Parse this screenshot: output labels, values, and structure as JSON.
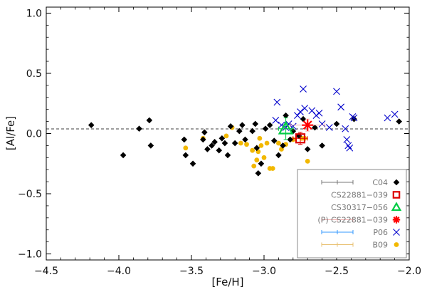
{
  "chart_data": {
    "type": "scatter",
    "xlabel": "[Fe/H]",
    "ylabel": "[Al/Fe]",
    "xlim": [
      -4.5,
      -2.0
    ],
    "ylim": [
      -1.05,
      1.05
    ],
    "xticks": [
      -4.5,
      -4.0,
      -3.5,
      -3.0,
      -2.5,
      -2.0
    ],
    "xtick_labels": [
      "−4.5",
      "−4.0",
      "−3.5",
      "−3.0",
      "−2.5",
      "−2.0"
    ],
    "yticks": [
      -1.0,
      -0.5,
      0.0,
      0.5,
      1.0
    ],
    "ytick_labels": [
      "−1.0",
      "−0.5",
      "0.0",
      "0.5",
      "1.0"
    ],
    "legend_position": "bottom-right",
    "series": [
      {
        "name": "C04",
        "marker": "diamond",
        "color": "#000000",
        "errorbar_color": "#777777",
        "points": [
          [
            -4.19,
            0.07
          ],
          [
            -3.97,
            -0.18
          ],
          [
            -3.86,
            0.04
          ],
          [
            -3.79,
            0.11
          ],
          [
            -3.78,
            -0.1
          ],
          [
            -3.55,
            -0.05
          ],
          [
            -3.54,
            -0.18
          ],
          [
            -3.49,
            -0.25
          ],
          [
            -3.42,
            -0.05
          ],
          [
            -3.41,
            0.01
          ],
          [
            -3.39,
            -0.13
          ],
          [
            -3.36,
            -0.1
          ],
          [
            -3.34,
            -0.07
          ],
          [
            -3.31,
            -0.14
          ],
          [
            -3.29,
            -0.04
          ],
          [
            -3.27,
            -0.08
          ],
          [
            -3.25,
            -0.18
          ],
          [
            -3.23,
            0.06
          ],
          [
            -3.2,
            -0.08
          ],
          [
            -3.17,
            0.02
          ],
          [
            -3.15,
            0.07
          ],
          [
            -3.13,
            -0.05
          ],
          [
            -3.08,
            0.02
          ],
          [
            -3.06,
            0.08
          ],
          [
            -3.05,
            -0.12
          ],
          [
            -3.04,
            -0.33
          ],
          [
            -3.02,
            -0.25
          ],
          [
            -2.99,
            0.04
          ],
          [
            -2.96,
            0.07
          ],
          [
            -2.93,
            -0.06
          ],
          [
            -2.9,
            -0.18
          ],
          [
            -2.87,
            -0.1
          ],
          [
            -2.85,
            0.15
          ],
          [
            -2.82,
            -0.05
          ],
          [
            -2.8,
            0.02
          ],
          [
            -2.76,
            -0.02
          ],
          [
            -2.73,
            0.12
          ],
          [
            -2.7,
            -0.13
          ],
          [
            -2.65,
            0.05
          ],
          [
            -2.6,
            -0.1
          ],
          [
            -2.5,
            0.08
          ],
          [
            -2.38,
            0.12
          ],
          [
            -2.07,
            0.1
          ]
        ]
      },
      {
        "name": "CS22881−039",
        "marker": "open-square",
        "color": "#dd0000",
        "points": [
          [
            -2.75,
            -0.04
          ]
        ],
        "error": {
          "x": 0.05,
          "y": 0.05
        }
      },
      {
        "name": "CS30317−056",
        "marker": "open-triangle",
        "color": "#00cc44",
        "points": [
          [
            -2.85,
            0.04
          ]
        ],
        "error": {
          "x": 0.05,
          "y": 0.09
        }
      },
      {
        "name": "(P) CS22881−039",
        "marker": "asterisk",
        "color": "#ff0000",
        "errorbar_color": "#f2b0b0",
        "points": [
          [
            -2.7,
            0.07
          ]
        ],
        "error": {
          "x": 0.12,
          "y": 0.05
        }
      },
      {
        "name": "P06",
        "marker": "cross",
        "color": "#0000cc",
        "errorbar_color": "#3399ff",
        "points": [
          [
            -2.91,
            0.26
          ],
          [
            -2.92,
            0.11
          ],
          [
            -2.88,
            0.07
          ],
          [
            -2.85,
            0.05
          ],
          [
            -2.83,
            0.08
          ],
          [
            -2.8,
            0.06
          ],
          [
            -2.77,
            0.15
          ],
          [
            -2.75,
            0.18
          ],
          [
            -2.73,
            0.37
          ],
          [
            -2.72,
            0.21
          ],
          [
            -2.67,
            0.19
          ],
          [
            -2.64,
            0.15
          ],
          [
            -2.62,
            0.17
          ],
          [
            -2.6,
            0.08
          ],
          [
            -2.55,
            0.05
          ],
          [
            -2.5,
            0.35
          ],
          [
            -2.47,
            0.22
          ],
          [
            -2.44,
            0.04
          ],
          [
            -2.43,
            -0.05
          ],
          [
            -2.41,
            -0.12
          ],
          [
            -2.42,
            -0.1
          ],
          [
            -2.39,
            0.14
          ],
          [
            -2.38,
            0.13
          ],
          [
            -2.15,
            0.13
          ],
          [
            -2.1,
            0.16
          ]
        ]
      },
      {
        "name": "B09",
        "marker": "filled-circle",
        "color": "#f2b800",
        "errorbar_color": "#e8c070",
        "points": [
          [
            -3.54,
            -0.12
          ],
          [
            -3.42,
            -0.04
          ],
          [
            -3.26,
            -0.02
          ],
          [
            -3.22,
            0.05
          ],
          [
            -3.16,
            -0.08
          ],
          [
            -3.12,
            -0.09
          ],
          [
            -3.08,
            -0.14
          ],
          [
            -3.07,
            -0.27
          ],
          [
            -3.05,
            -0.22
          ],
          [
            -3.04,
            -0.15
          ],
          [
            -3.03,
            -0.04
          ],
          [
            -3.02,
            -0.1
          ],
          [
            -3.0,
            -0.2
          ],
          [
            -2.98,
            -0.08
          ],
          [
            -2.96,
            -0.29
          ],
          [
            -2.94,
            -0.29
          ],
          [
            -2.9,
            -0.08
          ],
          [
            -2.88,
            -0.13
          ],
          [
            -2.85,
            -0.09
          ],
          [
            -2.8,
            -0.05
          ],
          [
            -2.74,
            -0.04
          ],
          [
            -2.72,
            -0.04
          ],
          [
            -2.7,
            -0.23
          ]
        ]
      }
    ]
  }
}
